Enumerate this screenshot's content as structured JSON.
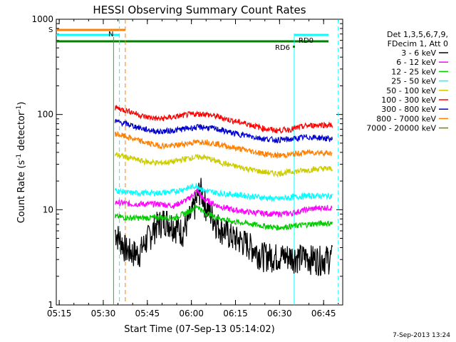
{
  "chart_data": {
    "type": "line",
    "title": "HESSI Observing Summary Count Rates",
    "xlabel": "Start Time (07-Sep-13 05:14:02)",
    "ylabel_main": "Count Rate (s",
    "ylabel_sup1": "-1",
    "ylabel_mid": " detector",
    "ylabel_sup2": "-1",
    "ylabel_end": ")",
    "y_scale": "log",
    "ylim": [
      1,
      1000
    ],
    "xlim_minutes": [
      0,
      97.5
    ],
    "x_ticks": [
      {
        "minute": 1,
        "label": "05:15"
      },
      {
        "minute": 16,
        "label": "05:30"
      },
      {
        "minute": 31,
        "label": "05:45"
      },
      {
        "minute": 46,
        "label": "06:00"
      },
      {
        "minute": 61,
        "label": "06:15"
      },
      {
        "minute": 76,
        "label": "06:30"
      },
      {
        "minute": 91,
        "label": "06:45"
      }
    ],
    "y_ticks": [
      {
        "value": 1,
        "label": "1"
      },
      {
        "value": 10,
        "label": "10"
      },
      {
        "value": 100,
        "label": "100"
      },
      {
        "value": 1000,
        "label": "1000"
      }
    ],
    "legend_header": [
      "Det 1,3,5,6,7,9,",
      "FDecim 1, Att 0"
    ],
    "series": [
      {
        "name": "3 - 6 keV",
        "color": "#000000",
        "x": [
          20,
          24,
          28,
          31,
          34,
          37,
          40,
          43,
          46,
          47.5,
          49,
          51,
          55,
          60,
          65,
          70,
          75,
          80,
          85,
          90,
          94
        ],
        "y": [
          6,
          3.8,
          3.5,
          5,
          7,
          8,
          7,
          6,
          9,
          12,
          17,
          11,
          7,
          5.2,
          4.5,
          3.4,
          3.3,
          3.3,
          3.2,
          3.1,
          3.2
        ]
      },
      {
        "name": "6 - 12 keV",
        "color": "#ff00ff",
        "x": [
          20,
          25,
          30,
          35,
          40,
          45,
          48,
          50,
          55,
          60,
          65,
          70,
          75,
          80,
          85,
          90,
          94
        ],
        "y": [
          12,
          11.5,
          11.5,
          11.5,
          11,
          13,
          16,
          13,
          11,
          10,
          9.5,
          9.2,
          9,
          9.2,
          10,
          10.5,
          10.5
        ]
      },
      {
        "name": "12 - 25 keV",
        "color": "#00cc00",
        "x": [
          20,
          25,
          30,
          35,
          40,
          45,
          48,
          50,
          55,
          60,
          65,
          70,
          75,
          80,
          85,
          90,
          94
        ],
        "y": [
          8.5,
          8.2,
          8.2,
          8.3,
          8.2,
          9.5,
          11,
          9.5,
          8.2,
          7.5,
          7.2,
          6.8,
          6.5,
          6.7,
          7,
          7.2,
          7.2
        ]
      },
      {
        "name": "25 - 50 keV",
        "color": "#00ffff",
        "x": [
          20,
          25,
          30,
          35,
          40,
          45,
          48,
          50,
          55,
          60,
          65,
          70,
          75,
          80,
          85,
          90,
          94
        ],
        "y": [
          16,
          15,
          15,
          15,
          15.5,
          17,
          18,
          16,
          15,
          14.5,
          14,
          13.5,
          13,
          13.5,
          14,
          14,
          14
        ]
      },
      {
        "name": "50 - 100 keV",
        "color": "#cccc00",
        "x": [
          20,
          25,
          30,
          35,
          40,
          45,
          50,
          55,
          60,
          65,
          70,
          75,
          80,
          85,
          90,
          94
        ],
        "y": [
          38,
          35,
          32,
          31,
          32,
          35,
          36,
          32,
          29,
          27,
          25,
          24,
          25,
          26,
          27,
          27
        ]
      },
      {
        "name": "100 - 300 keV",
        "color": "#ff0000",
        "x": [
          20,
          25,
          30,
          35,
          40,
          45,
          50,
          55,
          60,
          65,
          70,
          75,
          80,
          85,
          90,
          94
        ],
        "y": [
          118,
          108,
          95,
          90,
          94,
          100,
          102,
          95,
          86,
          80,
          72,
          68,
          70,
          76,
          78,
          77
        ]
      },
      {
        "name": "300 - 800 keV",
        "color": "#0000cc",
        "x": [
          20,
          25,
          30,
          35,
          40,
          45,
          50,
          55,
          60,
          65,
          70,
          75,
          80,
          85,
          90,
          94
        ],
        "y": [
          85,
          78,
          70,
          66,
          68,
          72,
          74,
          70,
          64,
          60,
          56,
          54,
          55,
          58,
          57,
          55
        ]
      },
      {
        "name": "800 - 7000 keV",
        "color": "#ff8000",
        "x": [
          20,
          25,
          30,
          35,
          40,
          45,
          50,
          55,
          60,
          65,
          70,
          75,
          80,
          85,
          90,
          94
        ],
        "y": [
          63,
          57,
          51,
          47,
          47,
          50,
          52,
          49,
          45,
          42,
          39,
          37,
          38,
          40,
          40,
          39
        ]
      },
      {
        "name": "7000 - 20000 keV",
        "color": "#808000",
        "x": [],
        "y": []
      }
    ],
    "annotations": [
      {
        "text": "S",
        "color": "#ff8000"
      },
      {
        "text": "N",
        "color": "#00ffff"
      },
      {
        "text": "RD0",
        "color": "#008000"
      },
      {
        "text": "RD6",
        "color": "#008000"
      }
    ],
    "colors": {
      "saa_orange": "#ff8000",
      "night_cyan": "#00ffff",
      "attenuator_green": "#008000",
      "flare_green": "#00cc00"
    },
    "footer_date": "7-Sep-2013 13:24"
  }
}
